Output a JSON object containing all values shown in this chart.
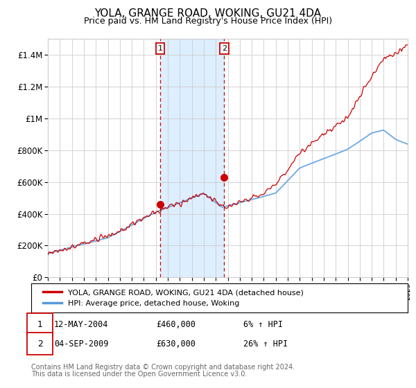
{
  "title": "YOLA, GRANGE ROAD, WOKING, GU21 4DA",
  "subtitle": "Price paid vs. HM Land Registry's House Price Index (HPI)",
  "legend_line1": "YOLA, GRANGE ROAD, WOKING, GU21 4DA (detached house)",
  "legend_line2": "HPI: Average price, detached house, Woking",
  "sale1_date": "12-MAY-2004",
  "sale1_price": 460000,
  "sale1_label": "6% ↑ HPI",
  "sale2_date": "04-SEP-2009",
  "sale2_price": 630000,
  "sale2_label": "26% ↑ HPI",
  "footer1": "Contains HM Land Registry data © Crown copyright and database right 2024.",
  "footer2": "This data is licensed under the Open Government Licence v3.0.",
  "hpi_color": "#5599dd",
  "price_color": "#cc0000",
  "background_color": "#ffffff",
  "grid_color": "#cccccc",
  "shade_color": "#ddeeff",
  "ylim_min": 0,
  "ylim_max": 1500000,
  "year_start": 1995,
  "year_end": 2025
}
